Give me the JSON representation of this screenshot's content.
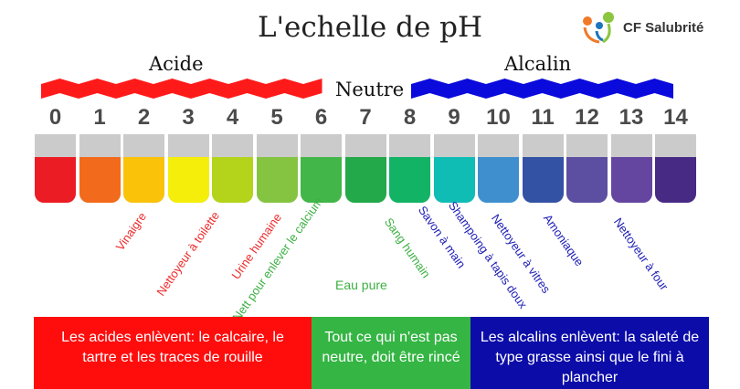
{
  "title": "L'echelle de pH",
  "logo": {
    "text": "CF Salubrité"
  },
  "sections": {
    "acid": "Acide",
    "neutral": "Neutre",
    "alkaline": "Alcalin"
  },
  "colors": {
    "acid_band": "#ff1a1a",
    "alkaline_band": "#0a0adc",
    "tube_empty": "#cbcbcb"
  },
  "scale": [
    {
      "ph": "0",
      "color": "#ec1c24"
    },
    {
      "ph": "1",
      "color": "#f26a1b"
    },
    {
      "ph": "2",
      "color": "#fbc20a"
    },
    {
      "ph": "3",
      "color": "#f4ee0a"
    },
    {
      "ph": "4",
      "color": "#b3d41a"
    },
    {
      "ph": "5",
      "color": "#84c441"
    },
    {
      "ph": "6",
      "color": "#43b649"
    },
    {
      "ph": "7",
      "color": "#23a84a"
    },
    {
      "ph": "8",
      "color": "#12b364"
    },
    {
      "ph": "9",
      "color": "#10bdb5"
    },
    {
      "ph": "10",
      "color": "#3f8fce"
    },
    {
      "ph": "11",
      "color": "#3452a4"
    },
    {
      "ph": "12",
      "color": "#5c4fa2"
    },
    {
      "ph": "13",
      "color": "#6445a0"
    },
    {
      "ph": "14",
      "color": "#472a84"
    }
  ],
  "labels": {
    "vinaigre": "Vinaigre",
    "toilette": "Nettoyeur à toilette",
    "urine": "Urine humaine",
    "calcium": "Nett pour enlever le calcium",
    "eau": "Eau pure",
    "sang": "Sang humain",
    "savon": "Savon à main",
    "shampoing": "Shampoing à tapis doux",
    "vitres": "Nettoyeur à vitres",
    "amoniaque": "Amoniaque",
    "four": "Nettoyeur à four"
  },
  "boxes": {
    "acid": "Les acides enlèvent:  le calcaire, le tartre et les traces de rouille",
    "neutral": "Tout ce qui n'est pas neutre, doit être rincé",
    "alkaline": "Les alcalins enlèvent: la saleté de type grasse ainsi que le fini à plancher"
  }
}
